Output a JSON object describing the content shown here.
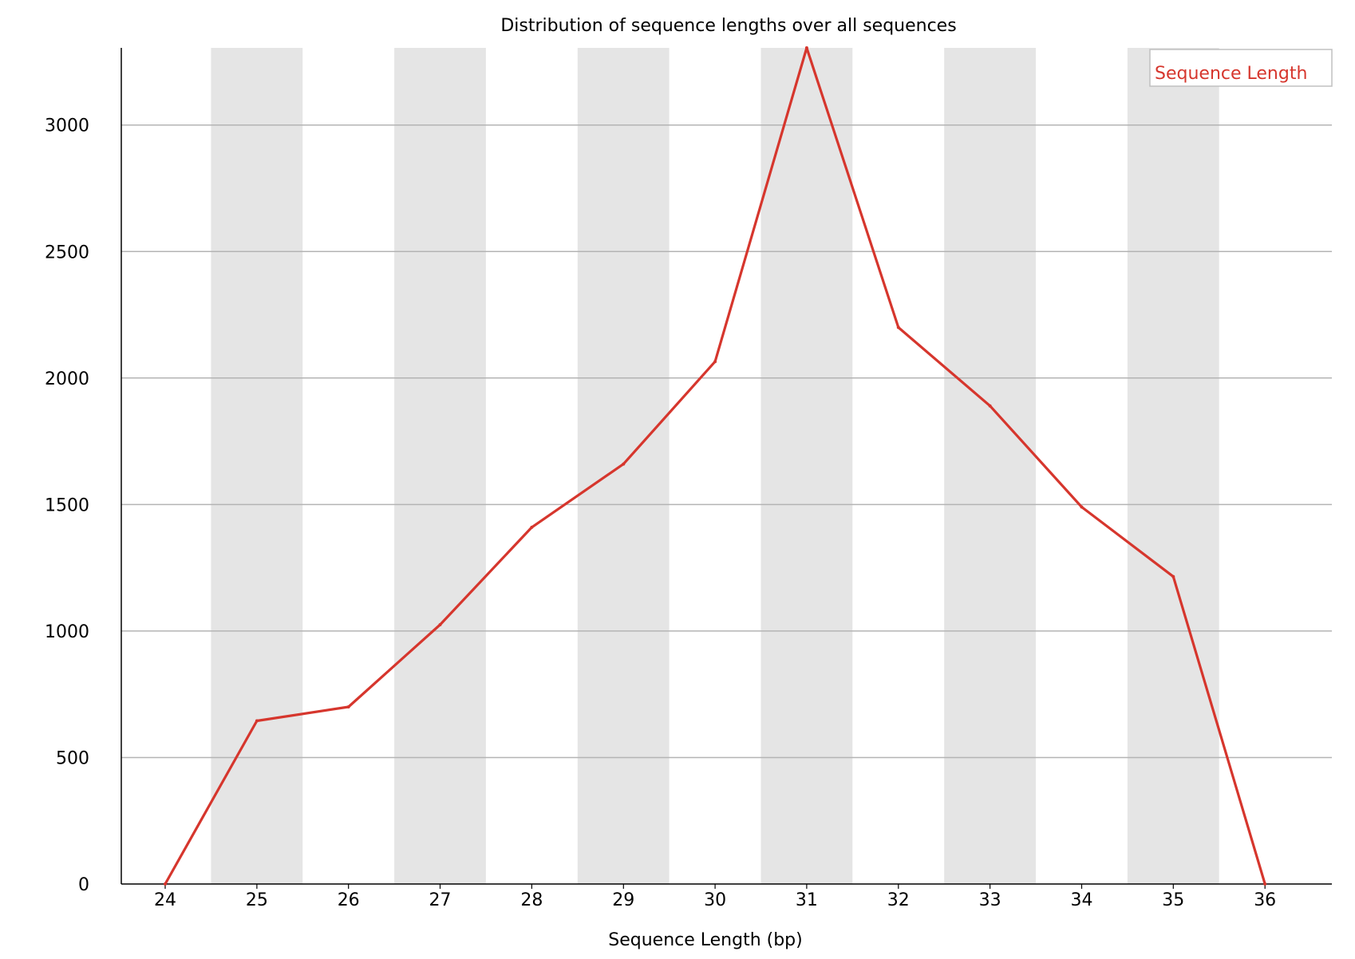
{
  "chart_data": {
    "type": "line",
    "title": "Distribution of sequence lengths over all sequences",
    "xlabel": "Sequence Length (bp)",
    "ylabel": "",
    "categories": [
      "24",
      "25",
      "26",
      "27",
      "28",
      "29",
      "30",
      "31",
      "32",
      "33",
      "34",
      "35",
      "36"
    ],
    "series": [
      {
        "name": "Sequence Length",
        "color": "#d6362d",
        "values": [
          0,
          645,
          700,
          1025,
          1410,
          1660,
          2065,
          3305,
          2200,
          1890,
          1490,
          1215,
          0
        ]
      }
    ],
    "ylim": [
      0,
      3305
    ],
    "yticks": [
      0,
      500,
      1000,
      1500,
      2000,
      2500,
      3000
    ],
    "ytick_labels": [
      "0",
      "500",
      "1000",
      "1500",
      "2000",
      "2500",
      "3000"
    ],
    "grid": true,
    "alternating_band_color": "#e5e5e5",
    "gridline_color": "#b4b4b4",
    "legend_position": "top-right"
  }
}
